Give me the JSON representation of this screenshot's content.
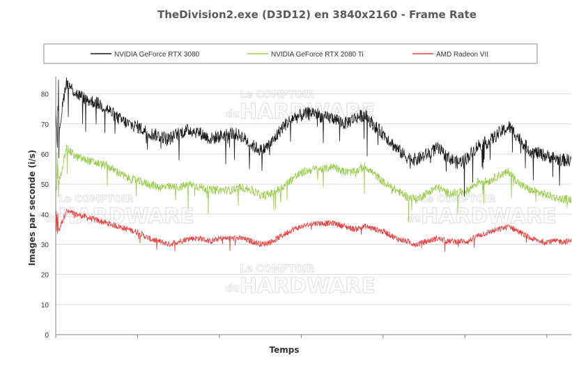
{
  "chart_data": {
    "type": "line",
    "title": "TheDivision2.exe (D3D12) en 3840x2160 - Frame Rate",
    "xlabel": "Temps",
    "ylabel": "Images par seconde (i/s)",
    "ylim": [
      0,
      85
    ],
    "yticks": [
      0,
      10,
      20,
      30,
      40,
      50,
      60,
      70,
      80
    ],
    "grid": "horizontal",
    "legend_position": "top",
    "watermark": {
      "small": "Le COMPTOIR",
      "du": "du",
      "big": "HARDWARE"
    },
    "x": [
      0,
      2,
      4,
      6,
      8,
      10,
      12,
      14,
      16,
      18,
      20,
      22,
      24,
      26,
      28,
      30,
      32,
      34,
      36,
      38,
      40,
      42,
      44,
      46,
      48,
      50,
      52,
      54,
      56,
      58,
      60,
      62,
      64,
      66,
      68,
      70,
      72,
      74,
      76,
      78,
      80,
      82,
      84,
      86,
      88,
      90,
      92,
      94,
      96,
      98,
      100
    ],
    "series": [
      {
        "name": "NVIDIA GeForce RTX 3080",
        "color": "#1a1a1a",
        "values": [
          60,
          84,
          80,
          78,
          77,
          75,
          72,
          70,
          69,
          67,
          66,
          65,
          67,
          68,
          67,
          65,
          66,
          67,
          66,
          63,
          61,
          64,
          69,
          72,
          73,
          74,
          72,
          72,
          70,
          72,
          73,
          69,
          66,
          62,
          59,
          58,
          60,
          62,
          59,
          57,
          59,
          63,
          64,
          67,
          69,
          65,
          61,
          60,
          59,
          58,
          58
        ]
      },
      {
        "name": "NVIDIA GeForce RTX 2080 Ti",
        "color": "#9acd4a",
        "values": [
          45,
          62,
          59,
          58,
          57,
          56,
          54,
          52,
          51,
          50,
          49,
          49,
          49,
          50,
          49,
          48,
          48,
          48,
          49,
          48,
          46,
          47,
          49,
          52,
          54,
          55,
          55,
          56,
          54,
          54,
          56,
          53,
          50,
          48,
          46,
          45,
          47,
          49,
          47,
          47,
          48,
          51,
          51,
          53,
          54,
          50,
          48,
          47,
          46,
          45,
          45
        ]
      },
      {
        "name": "AMD Radeon VII",
        "color": "#ee3b3b",
        "values": [
          32,
          41,
          40,
          39,
          38,
          37,
          36,
          35,
          34,
          32,
          31,
          30,
          31,
          32,
          32,
          31,
          32,
          32,
          32,
          31,
          30,
          31,
          33,
          35,
          36,
          37,
          37,
          37,
          36,
          35,
          36,
          35,
          34,
          32,
          31,
          30,
          31,
          32,
          31,
          31,
          31,
          33,
          34,
          35,
          36,
          34,
          32,
          31,
          31,
          31,
          31
        ]
      }
    ]
  }
}
